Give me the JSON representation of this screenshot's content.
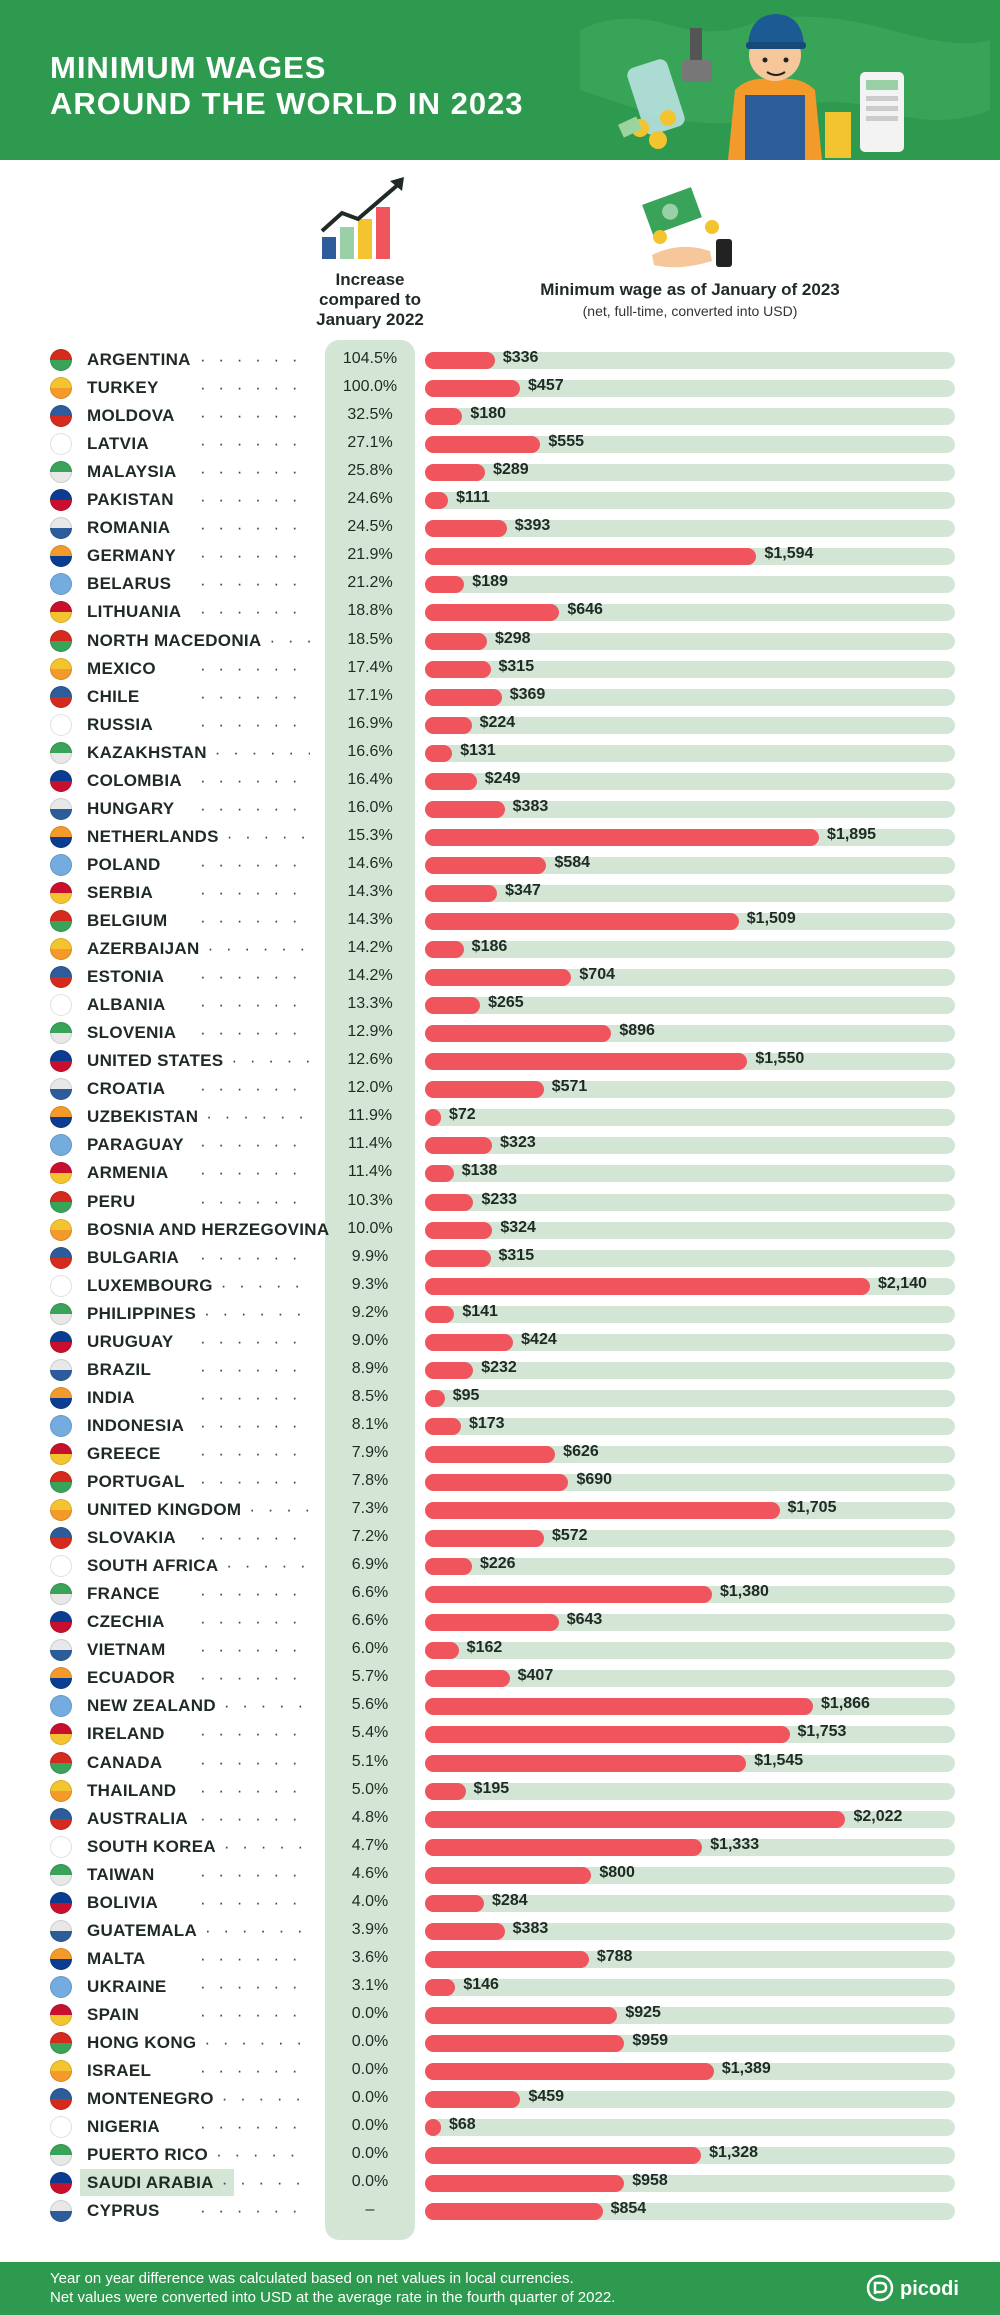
{
  "header": {
    "title_line1": "MINIMUM WAGES",
    "title_line2": "AROUND THE WORLD IN 2023"
  },
  "columns": {
    "increase_line1": "Increase",
    "increase_line2": "compared to",
    "increase_line3": "January 2022",
    "wage_title": "Minimum wage as of January of 2023",
    "wage_subtitle": "(net, full-time, converted into USD)"
  },
  "footer": {
    "note_line1": "Year on year difference was calculated based on net values in local currencies.",
    "note_line2": "Net values were converted into USD at the average rate in the fourth quarter of 2022.",
    "brand": "picodi"
  },
  "colors": {
    "brand_green": "#2e9a4f",
    "track": "#d3e6d6",
    "bar": "#f0555e"
  },
  "chart_data": {
    "type": "bar",
    "orientation": "horizontal",
    "title": "MINIMUM WAGES AROUND THE WORLD IN 2023",
    "xlabel": "Minimum wage as of January of 2023",
    "xlim": [
      0,
      2400
    ],
    "highlighted": "SAUDI ARABIA",
    "rows": [
      {
        "country": "ARGENTINA",
        "increase": "104.5%",
        "value": 336,
        "label": "$336"
      },
      {
        "country": "TURKEY",
        "increase": "100.0%",
        "value": 457,
        "label": "$457"
      },
      {
        "country": "MOLDOVA",
        "increase": "32.5%",
        "value": 180,
        "label": "$180"
      },
      {
        "country": "LATVIA",
        "increase": "27.1%",
        "value": 555,
        "label": "$555"
      },
      {
        "country": "MALAYSIA",
        "increase": "25.8%",
        "value": 289,
        "label": "$289"
      },
      {
        "country": "PAKISTAN",
        "increase": "24.6%",
        "value": 111,
        "label": "$111"
      },
      {
        "country": "ROMANIA",
        "increase": "24.5%",
        "value": 393,
        "label": "$393"
      },
      {
        "country": "GERMANY",
        "increase": "21.9%",
        "value": 1594,
        "label": "$1,594"
      },
      {
        "country": "BELARUS",
        "increase": "21.2%",
        "value": 189,
        "label": "$189"
      },
      {
        "country": "LITHUANIA",
        "increase": "18.8%",
        "value": 646,
        "label": "$646"
      },
      {
        "country": "NORTH MACEDONIA",
        "increase": "18.5%",
        "value": 298,
        "label": "$298"
      },
      {
        "country": "MEXICO",
        "increase": "17.4%",
        "value": 315,
        "label": "$315"
      },
      {
        "country": "CHILE",
        "increase": "17.1%",
        "value": 369,
        "label": "$369"
      },
      {
        "country": "RUSSIA",
        "increase": "16.9%",
        "value": 224,
        "label": "$224"
      },
      {
        "country": "KAZAKHSTAN",
        "increase": "16.6%",
        "value": 131,
        "label": "$131"
      },
      {
        "country": "COLOMBIA",
        "increase": "16.4%",
        "value": 249,
        "label": "$249"
      },
      {
        "country": "HUNGARY",
        "increase": "16.0%",
        "value": 383,
        "label": "$383"
      },
      {
        "country": "NETHERLANDS",
        "increase": "15.3%",
        "value": 1895,
        "label": "$1,895"
      },
      {
        "country": "POLAND",
        "increase": "14.6%",
        "value": 584,
        "label": "$584"
      },
      {
        "country": "SERBIA",
        "increase": "14.3%",
        "value": 347,
        "label": "$347"
      },
      {
        "country": "BELGIUM",
        "increase": "14.3%",
        "value": 1509,
        "label": "$1,509"
      },
      {
        "country": "AZERBAIJAN",
        "increase": "14.2%",
        "value": 186,
        "label": "$186"
      },
      {
        "country": "ESTONIA",
        "increase": "14.2%",
        "value": 704,
        "label": "$704"
      },
      {
        "country": "ALBANIA",
        "increase": "13.3%",
        "value": 265,
        "label": "$265"
      },
      {
        "country": "SLOVENIA",
        "increase": "12.9%",
        "value": 896,
        "label": "$896"
      },
      {
        "country": "UNITED STATES",
        "increase": "12.6%",
        "value": 1550,
        "label": "$1,550"
      },
      {
        "country": "CROATIA",
        "increase": "12.0%",
        "value": 571,
        "label": "$571"
      },
      {
        "country": "UZBEKISTAN",
        "increase": "11.9%",
        "value": 72,
        "label": "$72"
      },
      {
        "country": "PARAGUAY",
        "increase": "11.4%",
        "value": 323,
        "label": "$323"
      },
      {
        "country": "ARMENIA",
        "increase": "11.4%",
        "value": 138,
        "label": "$138"
      },
      {
        "country": "PERU",
        "increase": "10.3%",
        "value": 233,
        "label": "$233"
      },
      {
        "country": "BOSNIA AND HERZEGOVINA",
        "increase": "10.0%",
        "value": 324,
        "label": "$324"
      },
      {
        "country": "BULGARIA",
        "increase": "9.9%",
        "value": 315,
        "label": "$315"
      },
      {
        "country": "LUXEMBOURG",
        "increase": "9.3%",
        "value": 2140,
        "label": "$2,140"
      },
      {
        "country": "PHILIPPINES",
        "increase": "9.2%",
        "value": 141,
        "label": "$141"
      },
      {
        "country": "URUGUAY",
        "increase": "9.0%",
        "value": 424,
        "label": "$424"
      },
      {
        "country": "BRAZIL",
        "increase": "8.9%",
        "value": 232,
        "label": "$232"
      },
      {
        "country": "INDIA",
        "increase": "8.5%",
        "value": 95,
        "label": "$95"
      },
      {
        "country": "INDONESIA",
        "increase": "8.1%",
        "value": 173,
        "label": "$173"
      },
      {
        "country": "GREECE",
        "increase": "7.9%",
        "value": 626,
        "label": "$626"
      },
      {
        "country": "PORTUGAL",
        "increase": "7.8%",
        "value": 690,
        "label": "$690"
      },
      {
        "country": "UNITED KINGDOM",
        "increase": "7.3%",
        "value": 1705,
        "label": "$1,705"
      },
      {
        "country": "SLOVAKIA",
        "increase": "7.2%",
        "value": 572,
        "label": "$572"
      },
      {
        "country": "SOUTH AFRICA",
        "increase": "6.9%",
        "value": 226,
        "label": "$226"
      },
      {
        "country": "FRANCE",
        "increase": "6.6%",
        "value": 1380,
        "label": "$1,380"
      },
      {
        "country": "CZECHIA",
        "increase": "6.6%",
        "value": 643,
        "label": "$643"
      },
      {
        "country": "VIETNAM",
        "increase": "6.0%",
        "value": 162,
        "label": "$162"
      },
      {
        "country": "ECUADOR",
        "increase": "5.7%",
        "value": 407,
        "label": "$407"
      },
      {
        "country": "NEW ZEALAND",
        "increase": "5.6%",
        "value": 1866,
        "label": "$1,866"
      },
      {
        "country": "IRELAND",
        "increase": "5.4%",
        "value": 1753,
        "label": "$1,753"
      },
      {
        "country": "CANADA",
        "increase": "5.1%",
        "value": 1545,
        "label": "$1,545"
      },
      {
        "country": "THAILAND",
        "increase": "5.0%",
        "value": 195,
        "label": "$195"
      },
      {
        "country": "AUSTRALIA",
        "increase": "4.8%",
        "value": 2022,
        "label": "$2,022"
      },
      {
        "country": "SOUTH KOREA",
        "increase": "4.7%",
        "value": 1333,
        "label": "$1,333"
      },
      {
        "country": "TAIWAN",
        "increase": "4.6%",
        "value": 800,
        "label": "$800"
      },
      {
        "country": "BOLIVIA",
        "increase": "4.0%",
        "value": 284,
        "label": "$284"
      },
      {
        "country": "GUATEMALA",
        "increase": "3.9%",
        "value": 383,
        "label": "$383"
      },
      {
        "country": "MALTA",
        "increase": "3.6%",
        "value": 788,
        "label": "$788"
      },
      {
        "country": "UKRAINE",
        "increase": "3.1%",
        "value": 146,
        "label": "$146"
      },
      {
        "country": "SPAIN",
        "increase": "0.0%",
        "value": 925,
        "label": "$925"
      },
      {
        "country": "HONG KONG",
        "increase": "0.0%",
        "value": 959,
        "label": "$959"
      },
      {
        "country": "ISRAEL",
        "increase": "0.0%",
        "value": 1389,
        "label": "$1,389"
      },
      {
        "country": "MONTENEGRO",
        "increase": "0.0%",
        "value": 459,
        "label": "$459"
      },
      {
        "country": "NIGERIA",
        "increase": "0.0%",
        "value": 68,
        "label": "$68"
      },
      {
        "country": "PUERTO RICO",
        "increase": "0.0%",
        "value": 1328,
        "label": "$1,328"
      },
      {
        "country": "SAUDI ARABIA",
        "increase": "0.0%",
        "value": 958,
        "label": "$958"
      },
      {
        "country": "CYPRUS",
        "increase": "–",
        "value": 854,
        "label": "$854"
      }
    ]
  }
}
